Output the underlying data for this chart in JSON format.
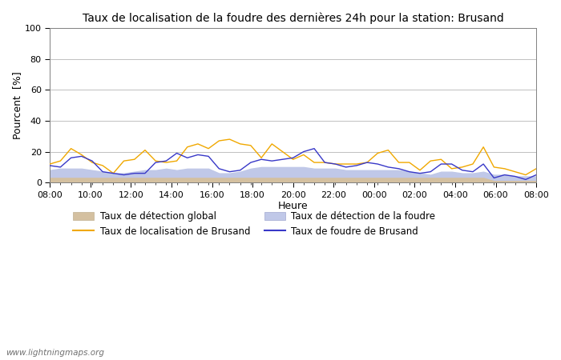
{
  "title": "Taux de localisation de la foudre des dernières 24h pour la station: Brusand",
  "xlabel": "Heure",
  "ylabel": "Pourcent  [%]",
  "watermark": "www.lightningmaps.org",
  "ylim": [
    0,
    100
  ],
  "yticks": [
    0,
    20,
    40,
    60,
    80,
    100
  ],
  "x_labels": [
    "08:00",
    "10:00",
    "12:00",
    "14:00",
    "16:00",
    "18:00",
    "20:00",
    "22:00",
    "00:00",
    "02:00",
    "04:00",
    "06:00",
    "08:00"
  ],
  "legend": [
    {
      "label": "Taux de détection global",
      "type": "fill",
      "color": "#d4c0a0"
    },
    {
      "label": "Taux de localisation de Brusand",
      "type": "line",
      "color": "#f0a800"
    },
    {
      "label": "Taux de détection de la foudre",
      "type": "fill",
      "color": "#c0c8e8"
    },
    {
      "label": "Taux de foudre de Brusand",
      "type": "line",
      "color": "#3838c8"
    }
  ],
  "orange_line": [
    12,
    14,
    22,
    18,
    13,
    11,
    6,
    14,
    15,
    21,
    14,
    13,
    14,
    23,
    25,
    22,
    27,
    28,
    25,
    24,
    16,
    25,
    20,
    15,
    18,
    13,
    13,
    12,
    12,
    12,
    13,
    19,
    21,
    13,
    13,
    8,
    14,
    15,
    9,
    10,
    12,
    23,
    10,
    9,
    7,
    5,
    9
  ],
  "blue_line": [
    11,
    10,
    16,
    17,
    14,
    7,
    6,
    5,
    6,
    6,
    13,
    14,
    19,
    16,
    18,
    17,
    9,
    7,
    8,
    13,
    15,
    14,
    15,
    16,
    20,
    22,
    13,
    12,
    10,
    11,
    13,
    12,
    10,
    9,
    7,
    6,
    7,
    12,
    12,
    8,
    7,
    12,
    3,
    5,
    4,
    2,
    5
  ],
  "fill_global": [
    3,
    3,
    3,
    3,
    3,
    3,
    3,
    3,
    3,
    3,
    3,
    3,
    3,
    3,
    3,
    3,
    3,
    3,
    3,
    3,
    3,
    3,
    3,
    3,
    3,
    3,
    3,
    3,
    3,
    3,
    3,
    3,
    3,
    3,
    3,
    3,
    3,
    3,
    3,
    3,
    3,
    3,
    1,
    1,
    1,
    1,
    1
  ],
  "fill_foudre": [
    8,
    9,
    9,
    9,
    8,
    7,
    6,
    6,
    7,
    8,
    8,
    9,
    8,
    9,
    9,
    9,
    6,
    6,
    7,
    9,
    10,
    10,
    10,
    10,
    10,
    9,
    9,
    9,
    8,
    8,
    8,
    8,
    8,
    8,
    7,
    6,
    5,
    7,
    7,
    6,
    6,
    7,
    5,
    5,
    4,
    4,
    4
  ]
}
